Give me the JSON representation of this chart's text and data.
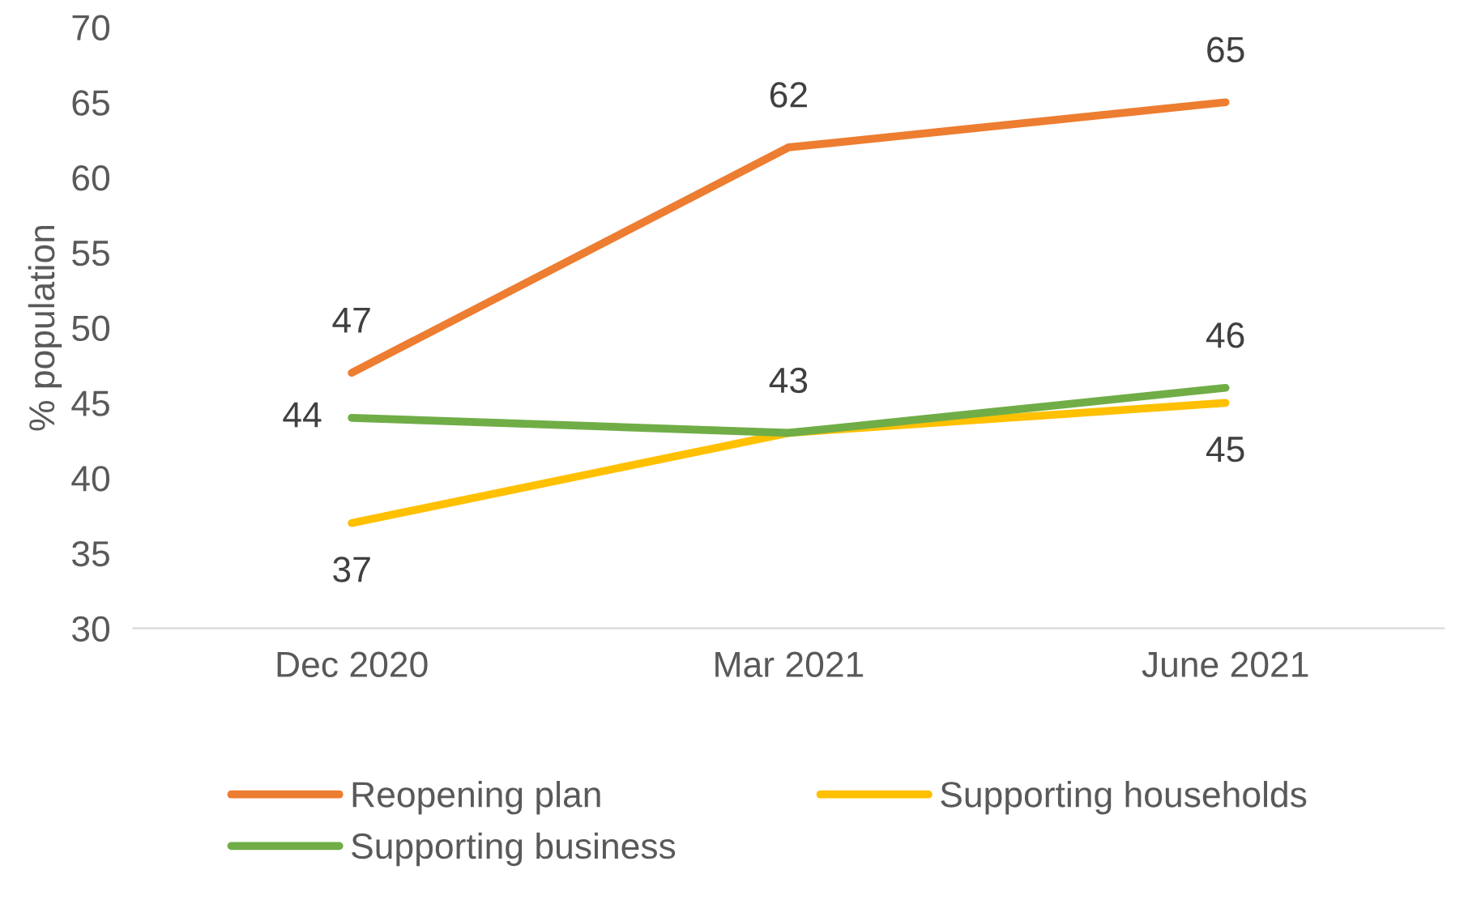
{
  "chart_data": {
    "type": "line",
    "ylabel": "% population",
    "categories": [
      "Dec 2020",
      "Mar 2021",
      "June 2021"
    ],
    "series": [
      {
        "name": "Reopening plan",
        "color": "#ed7d31",
        "values": [
          47,
          62,
          65
        ],
        "value_labels": [
          "47",
          "62",
          "65"
        ]
      },
      {
        "name": "Supporting households",
        "color": "#ffc000",
        "values": [
          37,
          43,
          45
        ],
        "value_labels": [
          "37",
          null,
          "45"
        ]
      },
      {
        "name": "Supporting business",
        "color": "#70ad47",
        "values": [
          44,
          43,
          46
        ],
        "value_labels": [
          "44",
          "43",
          "46"
        ]
      }
    ],
    "ylim": [
      30,
      70
    ],
    "yticks": [
      30,
      35,
      40,
      45,
      50,
      55,
      60,
      65,
      70
    ],
    "grid": false,
    "legend": "bottom",
    "marker": "none",
    "line_style": "solid"
  }
}
